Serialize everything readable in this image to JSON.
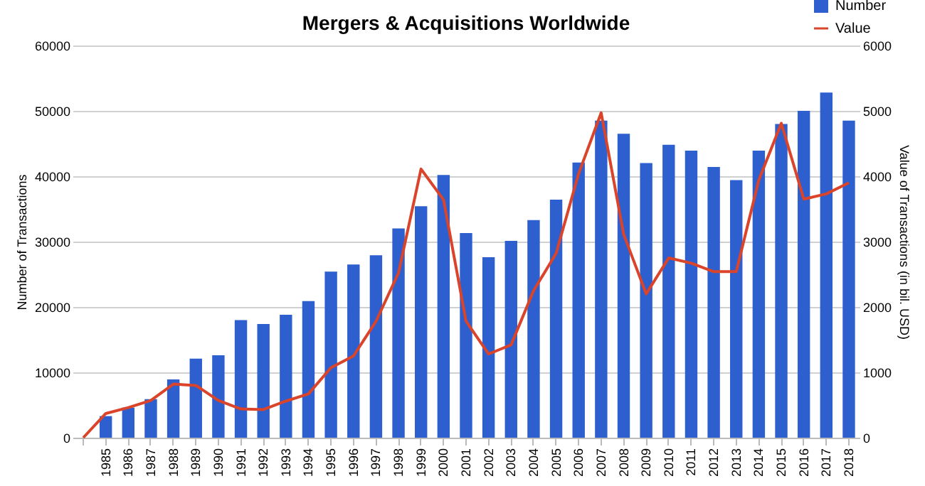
{
  "chart_data": {
    "type": "bar",
    "title": "Mergers & Acquisitions  Worldwide",
    "ylabel": "Number of Transactions",
    "y2label": "Value of Transactions (in bil. USD)",
    "categories": [
      null,
      "1985",
      "1986",
      "1987",
      "1988",
      "1989",
      "1990",
      "1991",
      "1992",
      "1993",
      "1994",
      "1995",
      "1996",
      "1997",
      "1998",
      "1999",
      "2000",
      "2001",
      "2002",
      "2003",
      "2004",
      "2005",
      "2006",
      "2007",
      "2008",
      "2009",
      "2010",
      "2011",
      "2012",
      "2013",
      "2014",
      "2015",
      "2016",
      "2017",
      "2018"
    ],
    "series": [
      {
        "name": "Number",
        "color": "#2e5fcf",
        "values": [
          null,
          3300,
          4600,
          5900,
          8900,
          12100,
          12600,
          18000,
          17400,
          18800,
          20900,
          25400,
          26500,
          27900,
          32000,
          35400,
          40200,
          31300,
          27600,
          30100,
          33300,
          36400,
          42100,
          48500,
          46500,
          42000,
          44800,
          43900,
          41400,
          39400,
          43900,
          48000,
          50000,
          52800,
          48500
        ]
      },
      {
        "name": "Value",
        "type": "line",
        "axis": "y2",
        "color": "#d9442a",
        "values": [
          0,
          370,
          460,
          570,
          820,
          800,
          570,
          440,
          430,
          560,
          670,
          1070,
          1250,
          1780,
          2520,
          4110,
          3640,
          1780,
          1280,
          1420,
          2250,
          2820,
          4040,
          4970,
          3110,
          2200,
          2750,
          2670,
          2540,
          2540,
          3940,
          4810,
          3650,
          3730,
          3900
        ]
      }
    ],
    "ylim": [
      0,
      60000
    ],
    "yticks": [
      0,
      10000,
      20000,
      30000,
      40000,
      50000,
      60000
    ],
    "y2lim": [
      0,
      6000
    ],
    "y2ticks": [
      0,
      1000,
      2000,
      3000,
      4000,
      5000,
      6000
    ],
    "grid": "y",
    "legend": "top right",
    "marker": "none",
    "line_style": "solid"
  }
}
